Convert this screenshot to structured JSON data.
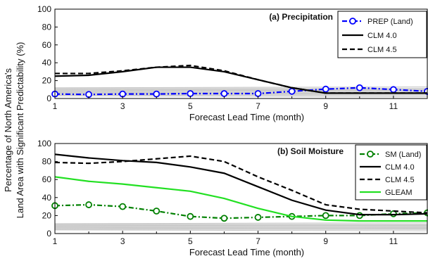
{
  "figure": {
    "shared_ylabel_line1": "Percentage of North America's",
    "shared_ylabel_line2": "Land Area with Significant Predictability (%)"
  },
  "chart_data": [
    {
      "type": "line",
      "title": "(a) Precipitation",
      "xlabel": "Forecast Lead Time (month)",
      "ylabel": "",
      "xlim": [
        1,
        12
      ],
      "ylim": [
        0,
        100
      ],
      "xticks": [
        1,
        3,
        5,
        7,
        9,
        11
      ],
      "yticks": [
        0,
        20,
        40,
        60,
        80,
        100
      ],
      "grid": false,
      "legend_position": "top-right",
      "x": [
        1,
        2,
        3,
        4,
        5,
        6,
        7,
        8,
        9,
        10,
        11,
        12
      ],
      "series": [
        {
          "name": "PREP (Land)",
          "color": "#0000ff",
          "style": "dashdot",
          "marker": "circle",
          "values": [
            5,
            4.5,
            5,
            5,
            5.5,
            5.5,
            5.5,
            8,
            10.5,
            12,
            10,
            8
          ]
        },
        {
          "name": "CLM 4.0",
          "color": "#000000",
          "style": "solid",
          "marker": "none",
          "values": [
            25,
            26,
            30,
            35,
            35,
            30,
            21,
            12,
            6,
            6,
            6,
            6
          ]
        },
        {
          "name": "CLM 4.5",
          "color": "#000000",
          "style": "dashed",
          "marker": "none",
          "values": [
            28,
            28,
            31,
            35,
            37,
            31,
            21,
            12,
            6,
            6,
            6,
            6
          ]
        }
      ],
      "background_band": {
        "color": "#b0b0b0",
        "low": 3,
        "high": 12
      }
    },
    {
      "type": "line",
      "title": "(b) Soil Moisture",
      "xlabel": "Forecast Lead Time (month)",
      "ylabel": "",
      "xlim": [
        1,
        12
      ],
      "ylim": [
        0,
        100
      ],
      "xticks": [
        1,
        3,
        5,
        7,
        9,
        11
      ],
      "yticks": [
        0,
        20,
        40,
        60,
        80,
        100
      ],
      "grid": false,
      "legend_position": "top-right",
      "x": [
        1,
        2,
        3,
        4,
        5,
        6,
        7,
        8,
        9,
        10,
        11,
        12
      ],
      "series": [
        {
          "name": "SM (Land)",
          "color": "#008000",
          "style": "dashdot",
          "marker": "circle",
          "values": [
            31,
            32,
            30,
            25,
            19,
            17,
            18,
            19,
            20,
            20,
            22,
            23
          ]
        },
        {
          "name": "CLM 4.0",
          "color": "#000000",
          "style": "solid",
          "marker": "none",
          "values": [
            88,
            84,
            81,
            79,
            74,
            67,
            52,
            37,
            26,
            21,
            21,
            22
          ]
        },
        {
          "name": "CLM 4.5",
          "color": "#000000",
          "style": "dashed",
          "marker": "none",
          "values": [
            79,
            78,
            80,
            83,
            86,
            80,
            63,
            48,
            32,
            27,
            25,
            23
          ]
        },
        {
          "name": "GLEAM",
          "color": "#22e022",
          "style": "solid",
          "marker": "none",
          "values": [
            63,
            58,
            55,
            51,
            47,
            39,
            28,
            19,
            15,
            14,
            14,
            14
          ]
        }
      ],
      "background_band": {
        "color": "#b0b0b0",
        "low": 4,
        "high": 11
      }
    }
  ]
}
